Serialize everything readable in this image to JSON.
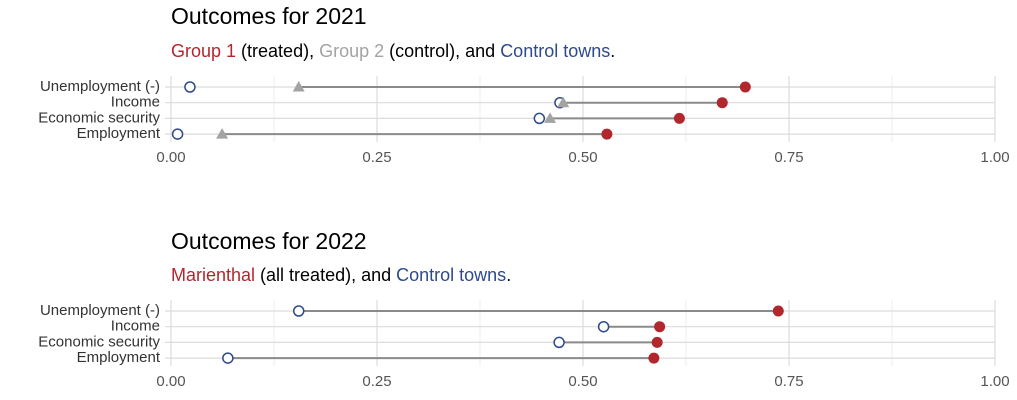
{
  "chart_data": [
    {
      "type": "dumbbell",
      "title": "Outcomes for 2021",
      "subtitle_parts": [
        " (treated), ",
        " (control), and ",
        "."
      ],
      "categories": [
        "Unemployment (-)",
        "Income",
        "Economic security",
        "Employment"
      ],
      "series": [
        {
          "name": "Group 1",
          "color": "#b2272d",
          "marker": "circle",
          "values": [
            0.697,
            0.669,
            0.617,
            0.529
          ]
        },
        {
          "name": "Group 2",
          "color": "#a3a3a3",
          "marker": "triangle",
          "values": [
            0.155,
            0.476,
            0.46,
            0.062
          ]
        },
        {
          "name": "Control towns",
          "color": "#2e4a8c",
          "marker": "open-circle",
          "values": [
            0.023,
            0.472,
            0.447,
            0.008
          ]
        }
      ],
      "xlim": [
        0,
        1
      ],
      "xticks": [
        {
          "value": 0,
          "label": "0.00"
        },
        {
          "value": 0.25,
          "label": "0.25"
        },
        {
          "value": 0.5,
          "label": "0.50"
        },
        {
          "value": 0.75,
          "label": "0.75"
        },
        {
          "value": 1,
          "label": "1.00"
        }
      ],
      "xminorticks": [
        0.125,
        0.375,
        0.625,
        0.875
      ],
      "grid": true
    },
    {
      "type": "dumbbell",
      "title": "Outcomes for 2022",
      "subtitle_parts": [
        " (all treated), and ",
        "."
      ],
      "categories": [
        "Unemployment (-)",
        "Income",
        "Economic security",
        "Employment"
      ],
      "series": [
        {
          "name": "Marienthal",
          "color": "#b2272d",
          "marker": "circle",
          "values": [
            0.737,
            0.593,
            0.59,
            0.586
          ]
        },
        {
          "name": "Control towns",
          "color": "#2e4a8c",
          "marker": "open-circle",
          "values": [
            0.155,
            0.525,
            0.471,
            0.069
          ]
        }
      ],
      "xlim": [
        0,
        1
      ],
      "xticks": [
        {
          "value": 0,
          "label": "0.00"
        },
        {
          "value": 0.25,
          "label": "0.25"
        },
        {
          "value": 0.5,
          "label": "0.50"
        },
        {
          "value": 0.75,
          "label": "0.75"
        },
        {
          "value": 1,
          "label": "1.00"
        }
      ],
      "xminorticks": [
        0.125,
        0.375,
        0.625,
        0.875
      ],
      "grid": true
    }
  ]
}
